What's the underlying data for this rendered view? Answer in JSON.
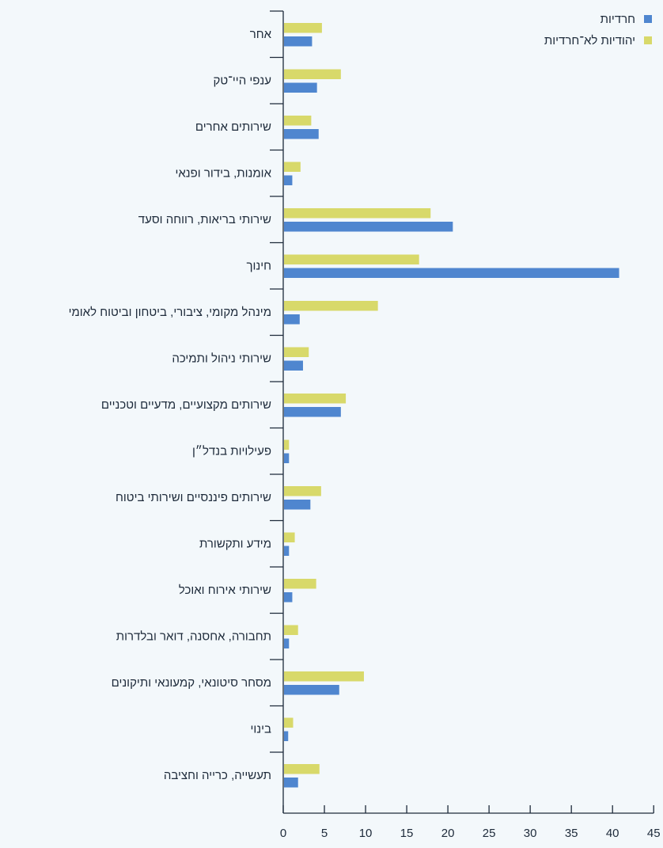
{
  "chart_data": {
    "type": "bar",
    "orientation": "horizontal",
    "categories": [
      "אחר",
      "ענפי היי־טק",
      "שירותים אחרים",
      "אומנות, בידור ופנאי",
      "שירותי בריאות, רווחה וסעד",
      "חינוך",
      "מינהל מקומי, ציבורי, ביטחון וביטוח לאומי",
      "שירותי ניהול ותמיכה",
      "שירותים מקצועיים, מדעיים וטכניים",
      "פעילויות בנדל״ן",
      "שירותים פיננסיים ושירותי ביטוח",
      "מידע ותקשורת",
      "שירותי אירוח ואוכל",
      "תחבורה, אחסנה, דואר ובלדרות",
      "מסחר סיטונאי, קמעונאי ותיקונים",
      "בינוי",
      "תעשייה, כרייה וחציבה"
    ],
    "series": [
      {
        "name": "יהודיות לא־חרדיות",
        "color": "#d8d96a",
        "values": [
          4.7,
          7.0,
          3.4,
          2.1,
          17.9,
          16.5,
          11.5,
          3.1,
          7.6,
          0.7,
          4.6,
          1.4,
          4.0,
          1.8,
          9.8,
          1.2,
          4.4
        ]
      },
      {
        "name": "חרדיות",
        "color": "#4f86cf",
        "values": [
          3.5,
          4.1,
          4.3,
          1.1,
          20.6,
          40.8,
          2.0,
          2.4,
          7.0,
          0.7,
          3.3,
          0.7,
          1.1,
          0.7,
          6.8,
          0.6,
          1.8
        ]
      }
    ],
    "xlim": [
      0,
      45
    ],
    "xticks": [
      0,
      5,
      10,
      15,
      20,
      25,
      30,
      35,
      40,
      45
    ],
    "xlabel": "",
    "ylabel": "",
    "title": "",
    "legend_position": "top-right",
    "grid": false
  }
}
